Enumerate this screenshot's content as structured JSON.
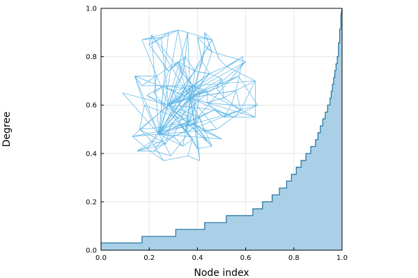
{
  "chart_data": {
    "type": "area",
    "title": "",
    "xlabel": "Node index",
    "ylabel": "Degree",
    "xlim": [
      0,
      1
    ],
    "ylim": [
      0,
      1
    ],
    "x_ticks": [
      "0.0",
      "0.2",
      "0.4",
      "0.6",
      "0.8",
      "1.0"
    ],
    "y_ticks": [
      "0.0",
      "0.2",
      "0.4",
      "0.6",
      "0.8",
      "1.0"
    ],
    "grid": true,
    "legend": "none",
    "colors": {
      "area_fill": "#a9d0e6",
      "area_line": "#1f6e9c",
      "graph_edges": "#5ab4e5"
    },
    "degree_distribution": {
      "x": [
        0.0,
        0.17,
        0.17,
        0.31,
        0.31,
        0.43,
        0.43,
        0.52,
        0.52,
        0.63,
        0.63,
        0.67,
        0.67,
        0.71,
        0.71,
        0.74,
        0.74,
        0.77,
        0.77,
        0.79,
        0.79,
        0.81,
        0.81,
        0.83,
        0.83,
        0.85,
        0.85,
        0.87,
        0.87,
        0.89,
        0.89,
        0.9,
        0.9,
        0.91,
        0.91,
        0.92,
        0.92,
        0.93,
        0.93,
        0.94,
        0.94,
        0.95,
        0.95,
        0.955,
        0.955,
        0.96,
        0.96,
        0.965,
        0.965,
        0.97,
        0.97,
        0.975,
        0.975,
        0.98,
        0.98,
        0.985,
        0.985,
        0.99,
        0.99,
        0.995,
        0.995,
        1.0
      ],
      "y": [
        0.03,
        0.03,
        0.057,
        0.057,
        0.086,
        0.086,
        0.114,
        0.114,
        0.143,
        0.143,
        0.171,
        0.171,
        0.2,
        0.2,
        0.229,
        0.229,
        0.257,
        0.257,
        0.286,
        0.286,
        0.314,
        0.314,
        0.343,
        0.343,
        0.371,
        0.371,
        0.4,
        0.4,
        0.429,
        0.429,
        0.457,
        0.457,
        0.486,
        0.486,
        0.514,
        0.514,
        0.543,
        0.543,
        0.571,
        0.571,
        0.6,
        0.6,
        0.629,
        0.629,
        0.657,
        0.657,
        0.686,
        0.686,
        0.714,
        0.714,
        0.743,
        0.743,
        0.771,
        0.771,
        0.8,
        0.8,
        0.857,
        0.857,
        0.914,
        0.914,
        0.97,
        1.0
      ]
    },
    "graph_nodes": [
      [
        0.24,
        0.48
      ],
      [
        0.21,
        0.45
      ],
      [
        0.16,
        0.5
      ],
      [
        0.19,
        0.42
      ],
      [
        0.13,
        0.47
      ],
      [
        0.27,
        0.44
      ],
      [
        0.3,
        0.47
      ],
      [
        0.33,
        0.52
      ],
      [
        0.29,
        0.52
      ],
      [
        0.35,
        0.49
      ],
      [
        0.36,
        0.55
      ],
      [
        0.39,
        0.52
      ],
      [
        0.41,
        0.55
      ],
      [
        0.43,
        0.49
      ],
      [
        0.38,
        0.46
      ],
      [
        0.34,
        0.43
      ],
      [
        0.4,
        0.42
      ],
      [
        0.44,
        0.45
      ],
      [
        0.36,
        0.39
      ],
      [
        0.41,
        0.37
      ],
      [
        0.47,
        0.58
      ],
      [
        0.44,
        0.61
      ],
      [
        0.39,
        0.59
      ],
      [
        0.37,
        0.63
      ],
      [
        0.35,
        0.67
      ],
      [
        0.38,
        0.68
      ],
      [
        0.41,
        0.65
      ],
      [
        0.44,
        0.66
      ],
      [
        0.32,
        0.61
      ],
      [
        0.28,
        0.6
      ],
      [
        0.3,
        0.66
      ],
      [
        0.26,
        0.68
      ],
      [
        0.22,
        0.65
      ],
      [
        0.19,
        0.64
      ],
      [
        0.17,
        0.68
      ],
      [
        0.14,
        0.72
      ],
      [
        0.18,
        0.6
      ],
      [
        0.09,
        0.65
      ],
      [
        0.23,
        0.72
      ],
      [
        0.28,
        0.74
      ],
      [
        0.32,
        0.78
      ],
      [
        0.35,
        0.8
      ],
      [
        0.34,
        0.73
      ],
      [
        0.39,
        0.74
      ],
      [
        0.42,
        0.78
      ],
      [
        0.45,
        0.73
      ],
      [
        0.48,
        0.67
      ],
      [
        0.51,
        0.63
      ],
      [
        0.54,
        0.6
      ],
      [
        0.56,
        0.66
      ],
      [
        0.5,
        0.71
      ],
      [
        0.52,
        0.76
      ],
      [
        0.57,
        0.72
      ],
      [
        0.59,
        0.8
      ],
      [
        0.6,
        0.78
      ],
      [
        0.43,
        0.84
      ],
      [
        0.46,
        0.87
      ],
      [
        0.4,
        0.88
      ],
      [
        0.36,
        0.9
      ],
      [
        0.32,
        0.91
      ],
      [
        0.28,
        0.9
      ],
      [
        0.25,
        0.88
      ],
      [
        0.21,
        0.89
      ],
      [
        0.17,
        0.87
      ],
      [
        0.2,
        0.85
      ],
      [
        0.43,
        0.9
      ],
      [
        0.46,
        0.82
      ],
      [
        0.49,
        0.79
      ],
      [
        0.55,
        0.55
      ],
      [
        0.58,
        0.58
      ],
      [
        0.51,
        0.55
      ],
      [
        0.48,
        0.5
      ],
      [
        0.5,
        0.46
      ],
      [
        0.46,
        0.43
      ],
      [
        0.29,
        0.39
      ],
      [
        0.26,
        0.37
      ],
      [
        0.22,
        0.41
      ],
      [
        0.15,
        0.41
      ],
      [
        0.64,
        0.7
      ],
      [
        0.65,
        0.6
      ],
      [
        0.64,
        0.55
      ]
    ]
  }
}
